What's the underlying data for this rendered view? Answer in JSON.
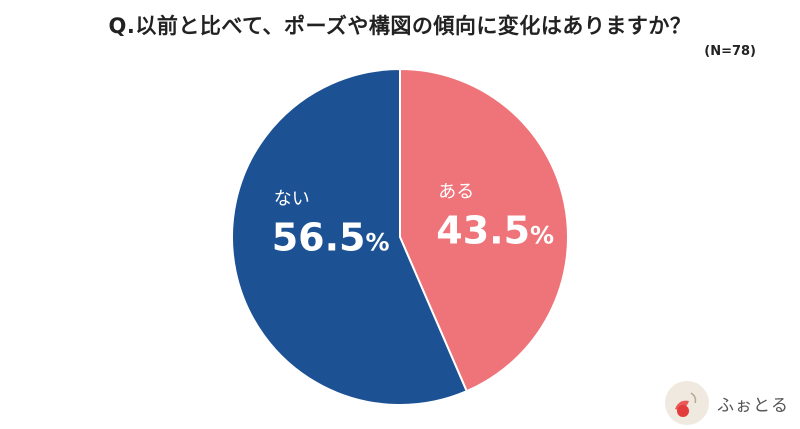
{
  "title": "Q.以前と比べて、ポーズや構図の傾向に変化はありますか？",
  "sample_size": "(N=78)",
  "logo_text": "ふぉとる",
  "colors": {
    "ある": "#ef7479",
    "ない": "#1c5194"
  },
  "chart_data": {
    "type": "pie",
    "slices": [
      {
        "label": "ある",
        "value": 43.5,
        "display": "43.5",
        "color": "#ef7479"
      },
      {
        "label": "ない",
        "value": 56.5,
        "display": "56.5",
        "color": "#1c5194"
      }
    ],
    "unit": "%",
    "start_angle": "12 o'clock",
    "direction": "clockwise"
  }
}
